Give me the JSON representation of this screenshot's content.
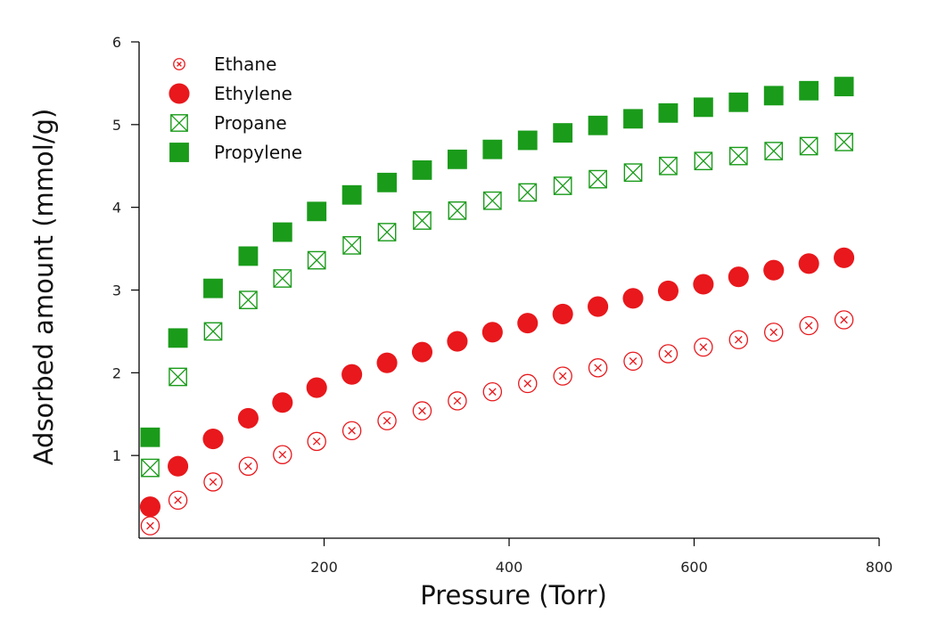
{
  "chart_data": {
    "type": "scatter",
    "xlabel": "Pressure (Torr)",
    "ylabel": "Adsorbed amount (mmol/g)",
    "xlim": [
      0,
      800
    ],
    "ylim": [
      0,
      6
    ],
    "x_ticks": [
      200,
      400,
      600,
      800
    ],
    "y_ticks": [
      1,
      2,
      3,
      4,
      5,
      6
    ],
    "grid": false,
    "legend_position": "top-left",
    "x": [
      12,
      42,
      80,
      118,
      155,
      192,
      230,
      268,
      306,
      344,
      382,
      420,
      458,
      496,
      534,
      572,
      610,
      648,
      686,
      724,
      762
    ],
    "series": [
      {
        "name": "Ethane",
        "marker": "circle-x",
        "color": "#e8181c",
        "values": [
          0.15,
          0.46,
          0.68,
          0.87,
          1.01,
          1.17,
          1.3,
          1.42,
          1.54,
          1.66,
          1.77,
          1.87,
          1.96,
          2.06,
          2.14,
          2.23,
          2.31,
          2.4,
          2.49,
          2.57,
          2.64
        ]
      },
      {
        "name": "Ethylene",
        "marker": "circle-filled",
        "color": "#e8181c",
        "values": [
          0.38,
          0.87,
          1.2,
          1.45,
          1.64,
          1.82,
          1.98,
          2.12,
          2.25,
          2.38,
          2.49,
          2.6,
          2.71,
          2.8,
          2.9,
          2.99,
          3.07,
          3.16,
          3.24,
          3.32,
          3.39
        ]
      },
      {
        "name": "Propane",
        "marker": "square-x",
        "color": "#1a9b1a",
        "values": [
          0.85,
          1.95,
          2.5,
          2.88,
          3.14,
          3.36,
          3.54,
          3.7,
          3.84,
          3.96,
          4.08,
          4.18,
          4.26,
          4.34,
          4.42,
          4.5,
          4.56,
          4.62,
          4.68,
          4.74,
          4.79
        ]
      },
      {
        "name": "Propylene",
        "marker": "square-filled",
        "color": "#1a9b1a",
        "values": [
          1.22,
          2.42,
          3.02,
          3.41,
          3.7,
          3.95,
          4.15,
          4.3,
          4.45,
          4.58,
          4.7,
          4.81,
          4.9,
          4.99,
          5.07,
          5.14,
          5.21,
          5.27,
          5.35,
          5.41,
          5.46
        ]
      }
    ]
  }
}
